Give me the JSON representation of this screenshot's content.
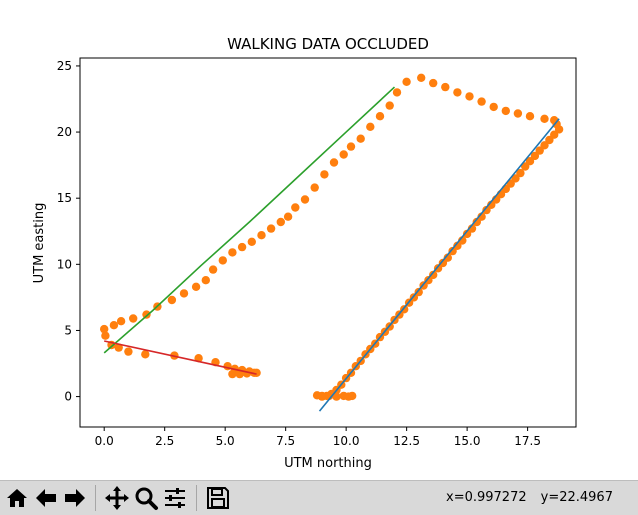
{
  "chart_data": {
    "type": "scatter",
    "title": "WALKING DATA OCCLUDED",
    "xlabel": "UTM northing",
    "ylabel": "UTM easting",
    "xlim": [
      -1.0,
      19.5
    ],
    "ylim": [
      -2.3,
      25.6
    ],
    "xticks": [
      0.0,
      2.5,
      5.0,
      7.5,
      10.0,
      12.5,
      15.0,
      17.5
    ],
    "xtick_labels": [
      "0.0",
      "2.5",
      "5.0",
      "7.5",
      "10.0",
      "12.5",
      "15.0",
      "17.5"
    ],
    "yticks": [
      0,
      5,
      10,
      15,
      20,
      25
    ],
    "ytick_labels": [
      "0",
      "5",
      "10",
      "15",
      "20",
      "25"
    ],
    "grid": false,
    "points": {
      "color": "#ff7f0e",
      "x": [
        0.0,
        0.05,
        0.3,
        0.6,
        1.0,
        1.7,
        0.4,
        0.7,
        1.2,
        1.75,
        2.2,
        2.8,
        3.3,
        3.8,
        4.2,
        4.5,
        4.9,
        5.3,
        5.7,
        6.1,
        6.5,
        6.9,
        7.3,
        7.6,
        7.9,
        8.3,
        8.7,
        9.1,
        9.5,
        9.9,
        10.2,
        10.6,
        11.0,
        11.4,
        11.8,
        12.1,
        12.5,
        13.1,
        13.6,
        14.1,
        14.6,
        15.1,
        15.6,
        16.1,
        16.6,
        17.1,
        17.6,
        18.2,
        18.6,
        18.7,
        18.8,
        18.6,
        18.4,
        18.2,
        18.0,
        17.8,
        17.6,
        17.4,
        17.2,
        17.0,
        16.8,
        16.6,
        16.4,
        16.2,
        16.0,
        15.8,
        15.6,
        15.4,
        15.2,
        15.0,
        14.8,
        14.6,
        14.4,
        14.2,
        14.0,
        13.8,
        13.6,
        13.4,
        13.2,
        13.0,
        12.8,
        12.6,
        12.4,
        12.2,
        12.0,
        11.8,
        11.6,
        11.4,
        11.2,
        11.0,
        10.8,
        10.6,
        10.4,
        10.2,
        10.0,
        9.8,
        9.6,
        9.4,
        9.2,
        9.0,
        8.8,
        9.0,
        9.3,
        9.6,
        9.9,
        10.1,
        10.25,
        2.9,
        3.9,
        4.6,
        5.1,
        5.4,
        5.7,
        6.0,
        6.3,
        5.3,
        5.6,
        5.9,
        6.2
      ],
      "y": [
        5.1,
        4.6,
        3.9,
        3.7,
        3.4,
        3.2,
        5.4,
        5.7,
        5.9,
        6.2,
        6.8,
        7.3,
        7.8,
        8.3,
        8.8,
        9.6,
        10.3,
        10.9,
        11.3,
        11.7,
        12.2,
        12.7,
        13.2,
        13.6,
        14.3,
        14.9,
        15.8,
        16.8,
        17.7,
        18.3,
        18.9,
        19.5,
        20.4,
        21.2,
        22.0,
        23.0,
        23.8,
        24.1,
        23.7,
        23.4,
        23.0,
        22.7,
        22.3,
        21.9,
        21.6,
        21.4,
        21.2,
        21.0,
        20.9,
        20.6,
        20.2,
        19.8,
        19.4,
        19.0,
        18.6,
        18.2,
        17.8,
        17.4,
        16.9,
        16.5,
        16.1,
        15.7,
        15.3,
        14.9,
        14.5,
        14.1,
        13.6,
        13.2,
        12.7,
        12.3,
        11.8,
        11.4,
        11.0,
        10.5,
        10.1,
        9.7,
        9.2,
        8.8,
        8.4,
        7.9,
        7.5,
        7.1,
        6.6,
        6.2,
        5.8,
        5.3,
        4.9,
        4.5,
        4.0,
        3.6,
        3.2,
        2.7,
        2.3,
        1.8,
        1.4,
        0.9,
        0.5,
        0.2,
        0.05,
        0.05,
        0.1,
        0.0,
        0.05,
        0.0,
        0.05,
        0.0,
        0.05,
        3.1,
        2.9,
        2.6,
        2.3,
        2.1,
        2.0,
        1.9,
        1.8,
        1.7,
        1.7,
        1.75,
        1.8
      ]
    },
    "lines": [
      {
        "color": "#2ca02c",
        "x": [
          0.0,
          2.0,
          4.0,
          6.0,
          8.0,
          10.0,
          12.0
        ],
        "y": [
          3.3,
          6.5,
          9.9,
          13.2,
          16.6,
          20.0,
          23.4
        ]
      },
      {
        "color": "#d62728",
        "x": [
          0.0,
          6.3
        ],
        "y": [
          4.2,
          1.7
        ]
      },
      {
        "color": "#1f77b4",
        "x": [
          8.9,
          18.8
        ],
        "y": [
          -1.1,
          21.0
        ]
      }
    ]
  },
  "toolbar": {
    "buttons": [
      {
        "name": "home-button",
        "icon": "home-icon"
      },
      {
        "name": "back-button",
        "icon": "arrow-left-icon"
      },
      {
        "name": "forward-button",
        "icon": "arrow-right-icon"
      },
      {
        "name": "pan-button",
        "icon": "move-icon"
      },
      {
        "name": "zoom-button",
        "icon": "magnifier-icon"
      },
      {
        "name": "subplots-button",
        "icon": "sliders-icon"
      },
      {
        "name": "save-button",
        "icon": "floppy-disk-icon"
      }
    ],
    "coord_x": "x=0.997272",
    "coord_y": "y=22.4967"
  }
}
